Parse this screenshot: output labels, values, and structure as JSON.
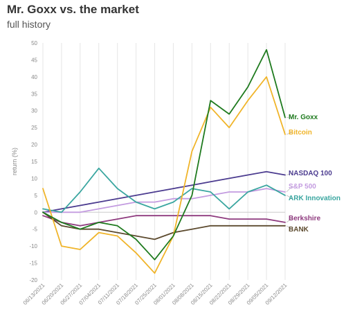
{
  "chart_data": {
    "type": "line",
    "title": "Mr. Goxx vs. the market",
    "subtitle": "full history",
    "ylabel": "return (%)",
    "xlabel": "",
    "ylim": [
      -20,
      50
    ],
    "yticks": [
      50,
      45,
      40,
      35,
      30,
      25,
      20,
      15,
      10,
      5,
      0,
      -5,
      -10,
      -15,
      -20
    ],
    "grid": "vertical",
    "legend": "direct labels at line ends (right)",
    "x": [
      "06/13/2021",
      "06/20/2021",
      "06/27/2021",
      "07/04/2021",
      "07/11/2021",
      "07/18/2021",
      "07/25/2021",
      "08/01/2021",
      "08/08/2021",
      "08/15/2021",
      "08/22/2021",
      "08/29/2021",
      "09/05/2021",
      "09/12/2021"
    ],
    "xtick_labels": [
      "06/13/2021",
      "06/20/2021",
      "06/27/2021",
      "07/04/2021",
      "07/11/2021",
      "07/18/2021",
      "07/25/2021",
      "08/01/2021",
      "08/08/2021",
      "08/15/2021",
      "08/22/2021",
      "08/29/2021",
      "09/05/2021",
      "09/12/2021"
    ],
    "series": [
      {
        "name": "Mr. Goxx",
        "color": "#1e7a1e",
        "values": [
          0,
          -3,
          -5,
          -3,
          -4,
          -8,
          -14,
          -7,
          5,
          33,
          29,
          37,
          48,
          28
        ]
      },
      {
        "name": "Bitcoin",
        "color": "#f0b429",
        "values": [
          7,
          -10,
          -11,
          -6,
          -7,
          -12,
          -18,
          -7,
          18,
          31,
          25,
          33,
          40,
          23
        ]
      },
      {
        "name": "NASDAQ 100",
        "color": "#4b3b8f",
        "values": [
          0,
          1,
          2,
          3,
          4,
          5,
          6,
          7,
          8,
          9,
          10,
          11,
          12,
          11
        ]
      },
      {
        "name": "S&P 500",
        "color": "#c39be0",
        "values": [
          0,
          0,
          0,
          1,
          2,
          3,
          3,
          4,
          4,
          5,
          6,
          6,
          7,
          6
        ]
      },
      {
        "name": "ARK Innovation",
        "color": "#3aa6a0",
        "values": [
          1,
          0,
          6,
          13,
          7,
          3,
          1,
          3,
          7,
          6,
          1,
          6,
          8,
          5
        ]
      },
      {
        "name": "Berkshire",
        "color": "#8e3a7e",
        "values": [
          -1,
          -3,
          -4,
          -3,
          -2,
          -1,
          -1,
          -1,
          -1,
          -1,
          -2,
          -2,
          -2,
          -3
        ]
      },
      {
        "name": "BANK",
        "color": "#5c4a2e",
        "values": [
          0,
          -4,
          -5,
          -5,
          -6,
          -7,
          -8,
          -6,
          -5,
          -4,
          -4,
          -4,
          -4,
          -4
        ]
      }
    ]
  }
}
